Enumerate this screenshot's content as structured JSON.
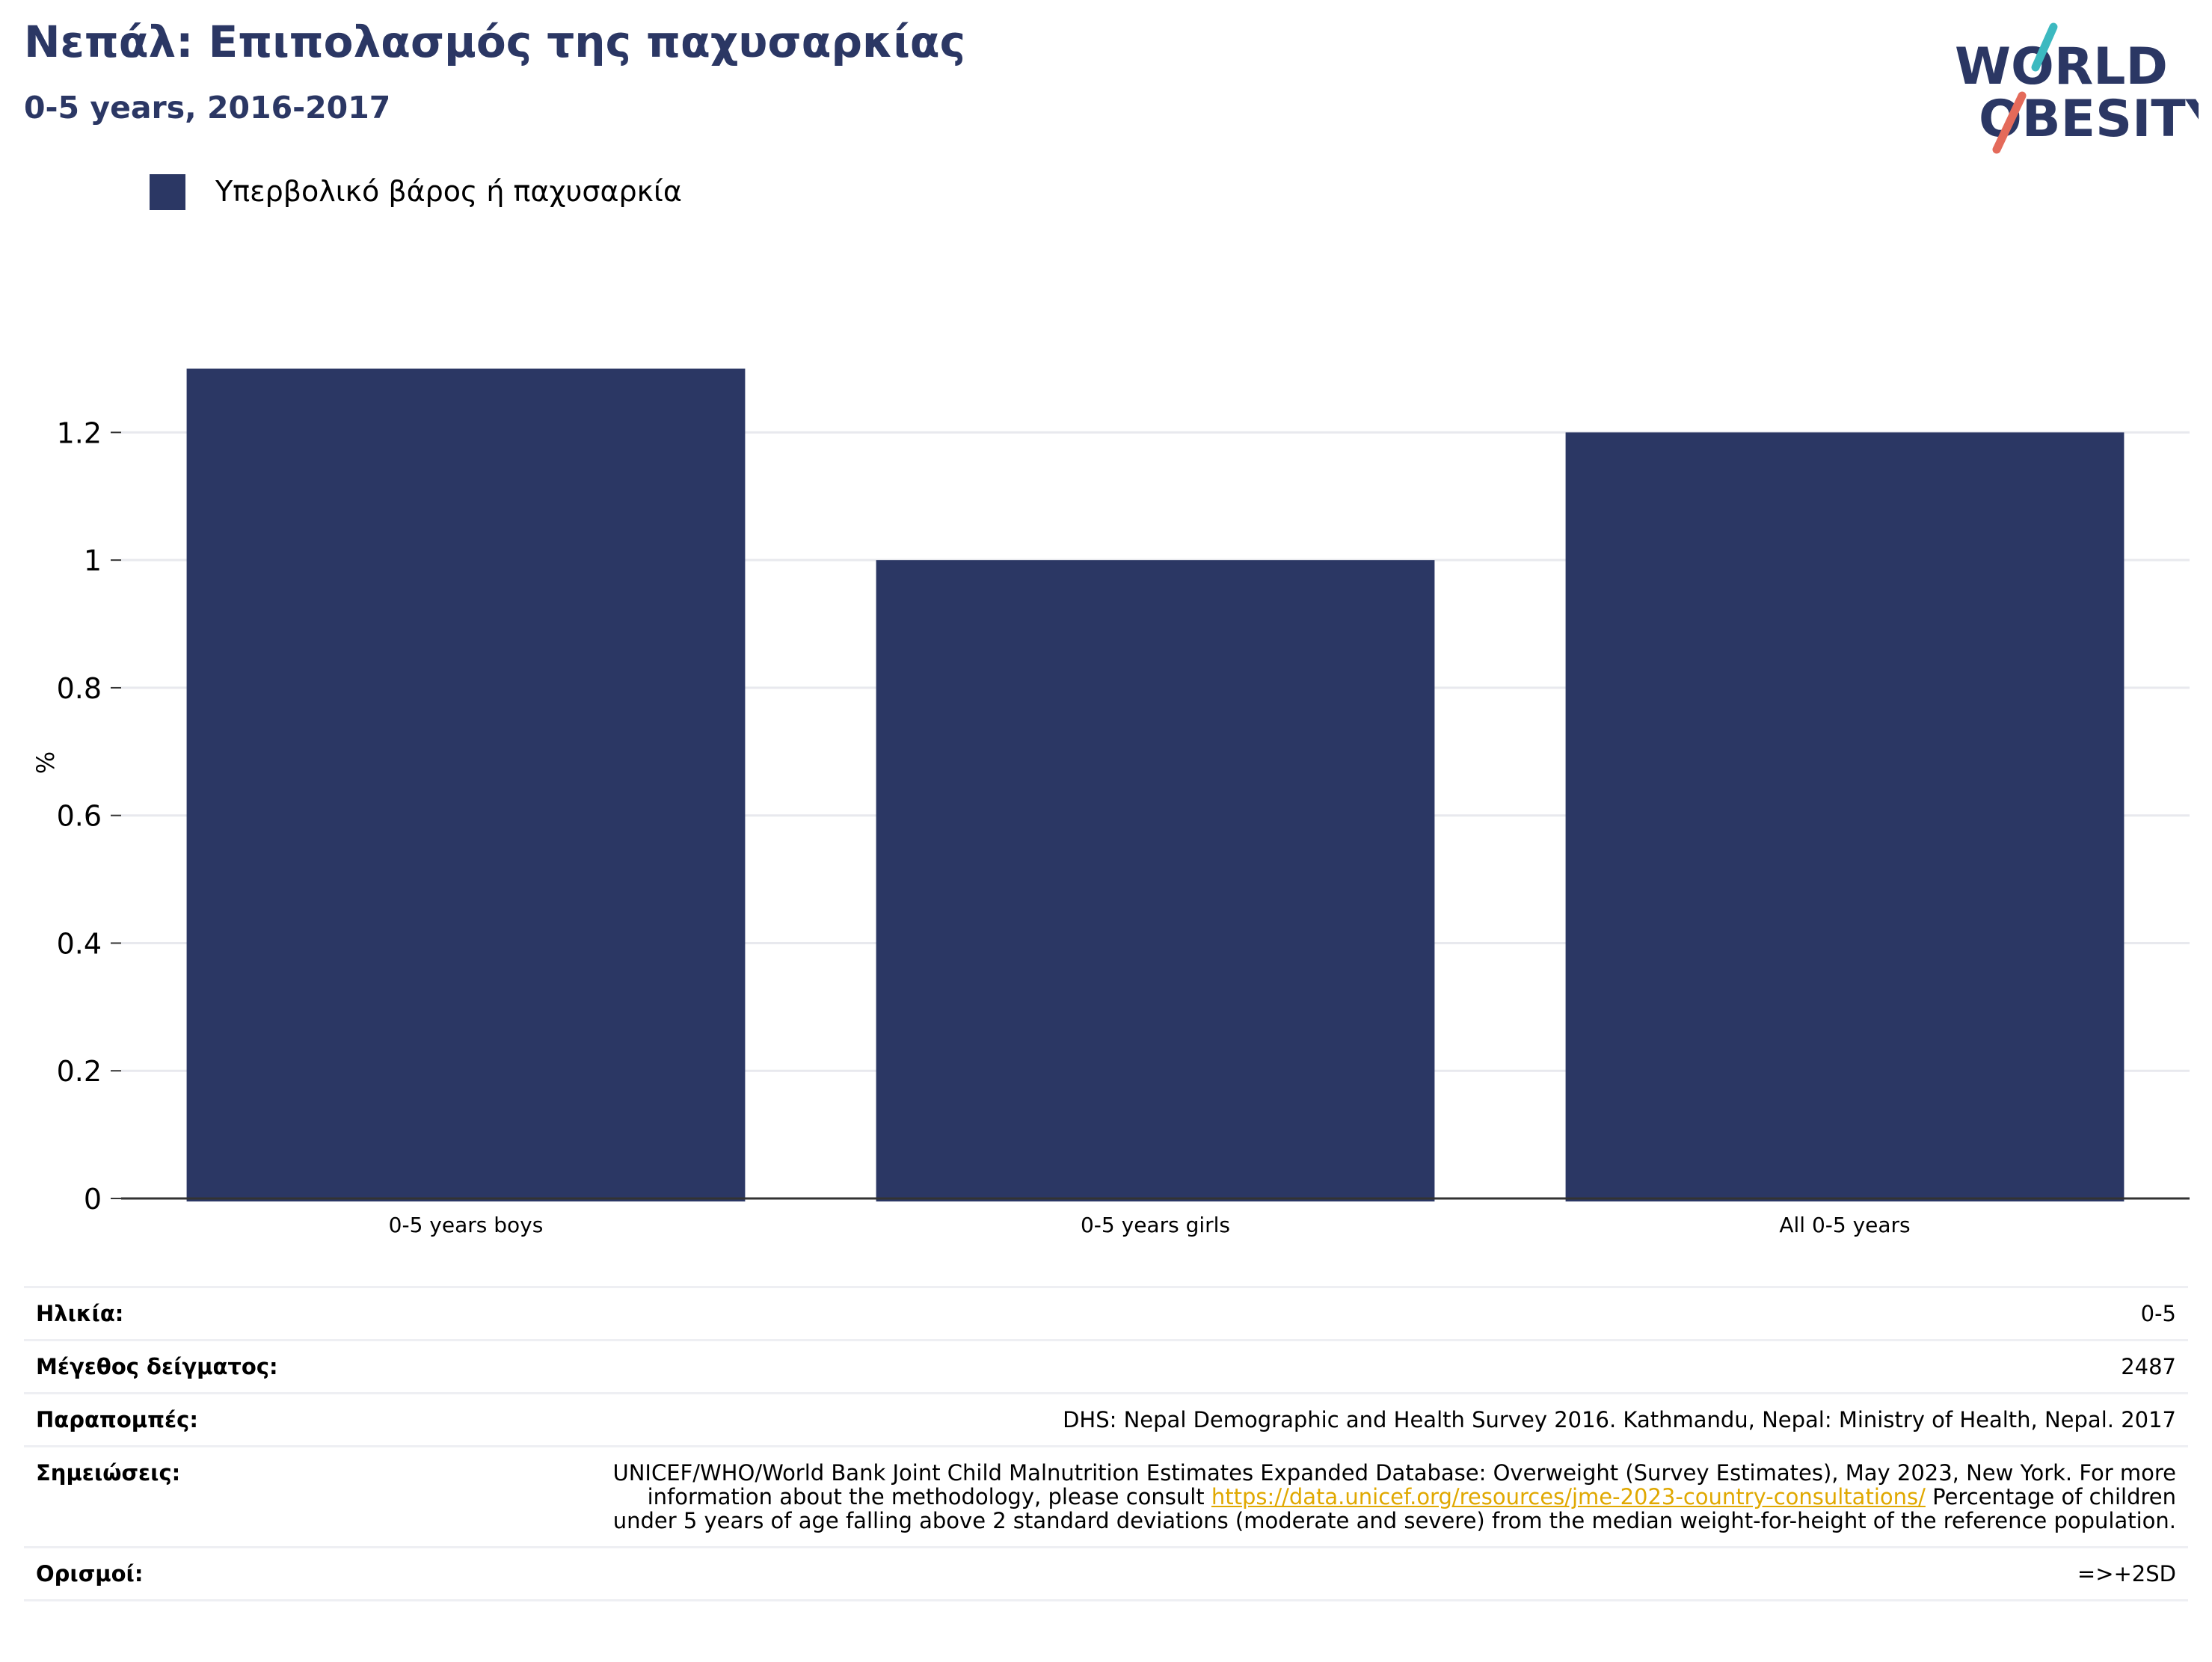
{
  "header": {
    "title": "Νεπάλ: Επιπολασμός της παχυσαρκίας",
    "subtitle": "0-5 years, 2016-2017"
  },
  "logo": {
    "line1": "WORLD",
    "line2": "OBESITY",
    "text_color": "#2b3764",
    "slash_colors": [
      "#3cb9c0",
      "#e46a5a"
    ]
  },
  "legend": {
    "label": "Υπερβολικό βάρος ή παχυσαρκία",
    "color": "#2b3764"
  },
  "chart_data": {
    "type": "bar",
    "categories": [
      "0-5 years boys",
      "0-5 years girls",
      "All 0-5 years"
    ],
    "series": [
      {
        "name": "Υπερβολικό βάρος ή παχυσαρκία",
        "values": [
          1.3,
          1.0,
          1.2
        ],
        "color": "#2b3764"
      }
    ],
    "ylabel": "%",
    "ylim": [
      0,
      1.3
    ],
    "yticks": [
      0,
      0.2,
      0.4,
      0.6,
      0.8,
      1,
      1.2
    ],
    "ytick_labels": [
      "0",
      "0.2",
      "0.4",
      "0.6",
      "0.8",
      "1",
      "1.2"
    ],
    "grid": true,
    "legend_position": "top-left"
  },
  "info": {
    "age_label": "Ηλικία:",
    "age_value": "0-5",
    "sample_label": "Μέγεθος δείγματος:",
    "sample_value": "2487",
    "refs_label": "Παραπομπές:",
    "refs_value": "DHS: Nepal Demographic and Health Survey 2016. Kathmandu, Nepal: Ministry of Health, Nepal. 2017",
    "notes_label": "Σημειώσεις:",
    "notes_before": "UNICEF/WHO/World Bank Joint Child Malnutrition Estimates Expanded Database: Overweight (Survey Estimates), May 2023, New York. For more information about the methodology, please consult ",
    "notes_link": "https://data.unicef.org/resources/jme-2023-country-consultations/",
    "notes_after": " Percentage of children under 5 years of age falling above 2 standard deviations (moderate and severe) from the median weight-for-height of the reference population.",
    "defs_label": "Ορισμοί:",
    "defs_value": "=>+2SD"
  }
}
